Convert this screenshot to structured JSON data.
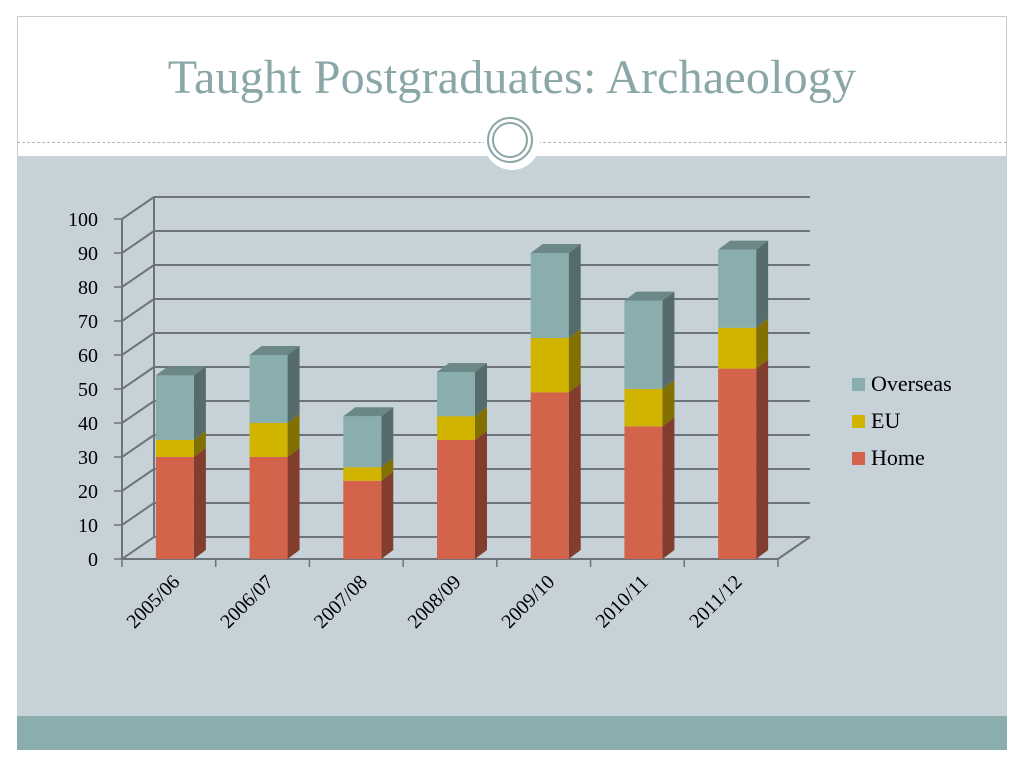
{
  "slide": {
    "title": "Taught Postgraduates: Archaeology"
  },
  "colors": {
    "title": "#8aa6a6",
    "content_band": "#c6d2d8",
    "footer_band": "#8aadad",
    "home": "#d3634a",
    "eu": "#d1b400",
    "overseas": "#8aadad"
  },
  "chart_data": {
    "type": "bar",
    "stacked": true,
    "three_d": true,
    "categories": [
      "2005/06",
      "2006/07",
      "2007/08",
      "2008/09",
      "2009/10",
      "2010/11",
      "2011/12"
    ],
    "series": [
      {
        "name": "Home",
        "color": "#d3634a",
        "values": [
          30,
          30,
          23,
          35,
          49,
          39,
          56
        ]
      },
      {
        "name": "EU",
        "color": "#d1b400",
        "values": [
          5,
          10,
          4,
          7,
          16,
          11,
          12
        ]
      },
      {
        "name": "Overseas",
        "color": "#8aadad",
        "values": [
          19,
          20,
          15,
          13,
          25,
          26,
          23
        ]
      }
    ],
    "ylim": [
      0,
      100
    ],
    "yticks": [
      "0",
      "10",
      "20",
      "30",
      "40",
      "50",
      "60",
      "70",
      "80",
      "90",
      "100"
    ],
    "grid": true,
    "legend": "right",
    "legend_order": [
      "Overseas",
      "EU",
      "Home"
    ]
  }
}
